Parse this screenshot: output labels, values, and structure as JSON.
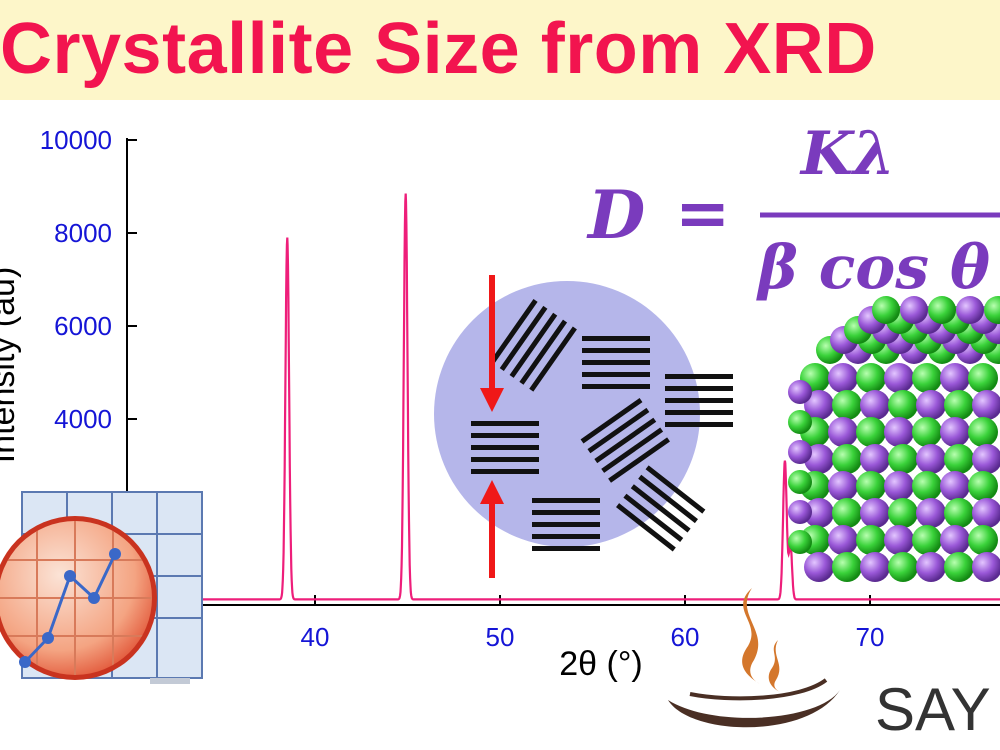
{
  "banner": {
    "title": "Crystallite Size from XRD"
  },
  "formula": {
    "lhs": "D",
    "equals": "=",
    "numerator": "Kλ",
    "denominator": "β cos θ"
  },
  "brand": {
    "text": "SAY"
  },
  "colors": {
    "trace": "#ee1e7a",
    "ticks": "#1515d6",
    "title": "#f2144f",
    "formula": "#7a3bbd",
    "banner_bg": "#fdf6c9"
  },
  "chart_data": {
    "type": "line",
    "xlabel": "2θ (°)",
    "ylabel": "Intensity (au)",
    "x_ticks": [
      40,
      50,
      60,
      70
    ],
    "y_ticks": [
      4000,
      6000,
      8000,
      10000
    ],
    "xlim": [
      33,
      80
    ],
    "ylim": [
      0,
      10000
    ],
    "baseline": 120,
    "peaks": [
      {
        "x": 38.5,
        "y": 7900,
        "width": 0.14
      },
      {
        "x": 44.9,
        "y": 8850,
        "width": 0.14
      },
      {
        "x": 65.4,
        "y": 3100,
        "width": 0.14
      },
      {
        "x": 65.7,
        "y": 1300,
        "width": 0.12
      }
    ]
  }
}
